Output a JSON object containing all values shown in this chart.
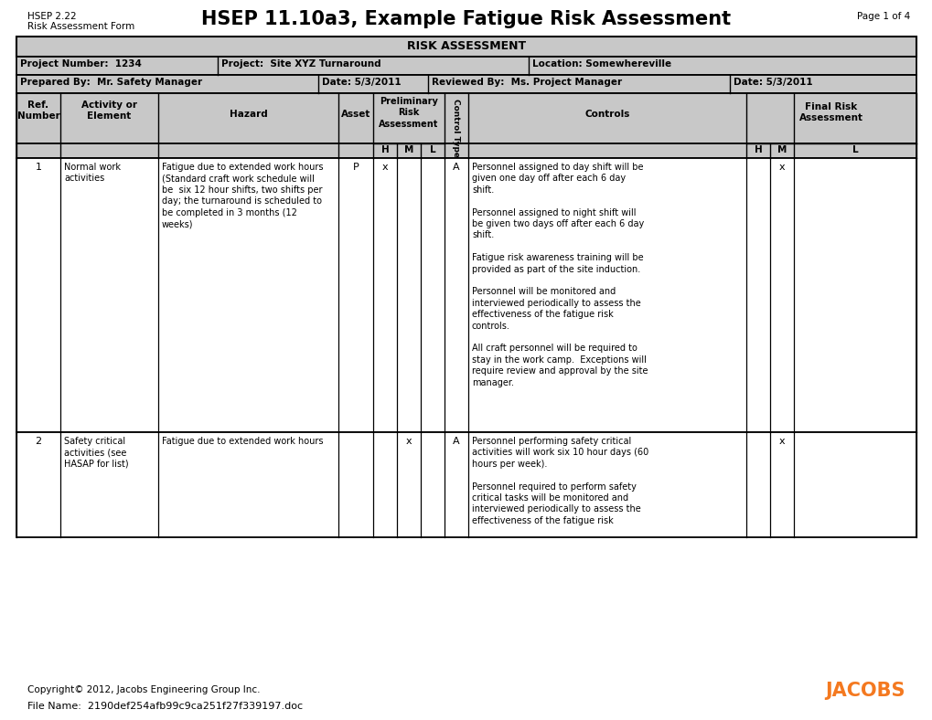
{
  "title": "HSEP 11.10a3, Example Fatigue Risk Assessment",
  "top_left_line1": "HSEP 2.22",
  "top_left_line2": "Risk Assessment Form",
  "top_right": "Page 1 of 4",
  "table_title": "RISK ASSESSMENT",
  "header_bg": "#c8c8c8",
  "row_bg": "#ffffff",
  "border_color": "#000000",
  "project_number": "Project Number:  1234",
  "project_name": "Project:  Site XYZ Turnaround",
  "location": "Location: Somewhereville",
  "prepared_by": "Prepared By:  Mr. Safety Manager",
  "prepared_date": "Date: 5/3/2011",
  "reviewed_by": "Reviewed By:  Ms. Project Manager",
  "reviewed_date": "Date: 5/3/2011",
  "footer_copyright": "Copyright© 2012, Jacobs Engineering Group Inc.",
  "footer_filename": "File Name:  2190def254afb99c9ca251f27f339197.doc",
  "jacobs_color": "#f47920",
  "controls1": "Personnel assigned to day shift will be\ngiven one day off after each 6 day\nshift.\n\nPersonnel assigned to night shift will\nbe given two days off after each 6 day\nshift.\n\nFatigue risk awareness training will be\nprovided as part of the site induction.\n\nPersonnel will be monitored and\ninterviewed periodically to assess the\neffectiveness of the fatigue risk\ncontrols.\n\nAll craft personnel will be required to\nstay in the work camp.  Exceptions will\nrequire review and approval by the site\nmanager.",
  "controls2": "Personnel performing safety critical\nactivities will work six 10 hour days (60\nhours per week).\n\nPersonnel required to perform safety\ncritical tasks will be monitored and\ninterviewed periodically to assess the\neffectiveness of the fatigue risk",
  "hazard1": "Fatigue due to extended work hours\n(Standard craft work schedule will\nbe  six 12 hour shifts, two shifts per\nday; the turnaround is scheduled to\nbe completed in 3 months (12\nweeks)",
  "hazard2": "Fatigue due to extended work hours",
  "activity1": "Normal work\nactivities",
  "activity2": "Safety critical\nactivities (see\nHASAP for list)"
}
